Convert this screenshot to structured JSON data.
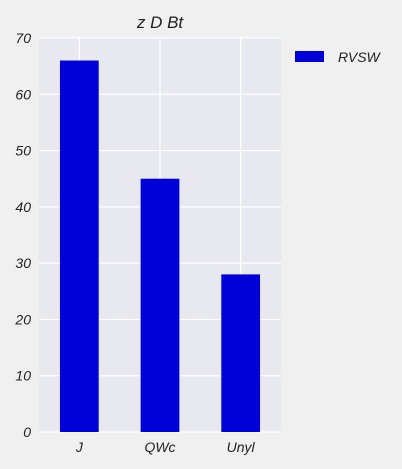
{
  "chart_data": {
    "type": "bar",
    "title": "z  D Bt",
    "xlabel": "",
    "ylabel": "",
    "categories": [
      "J",
      "QWc",
      "Unyl"
    ],
    "series": [
      {
        "name": "RVSW",
        "values": [
          66,
          45,
          28
        ],
        "color": "#0000d8"
      }
    ],
    "ylim": [
      0,
      70
    ],
    "yticks": [
      0,
      10,
      20,
      30,
      40,
      50,
      60,
      70
    ],
    "grid": true,
    "legend_position": "right-top",
    "plot_background": "#e8e8f0",
    "page_background": "#f0f0f0",
    "grid_color": "#ffffff"
  }
}
